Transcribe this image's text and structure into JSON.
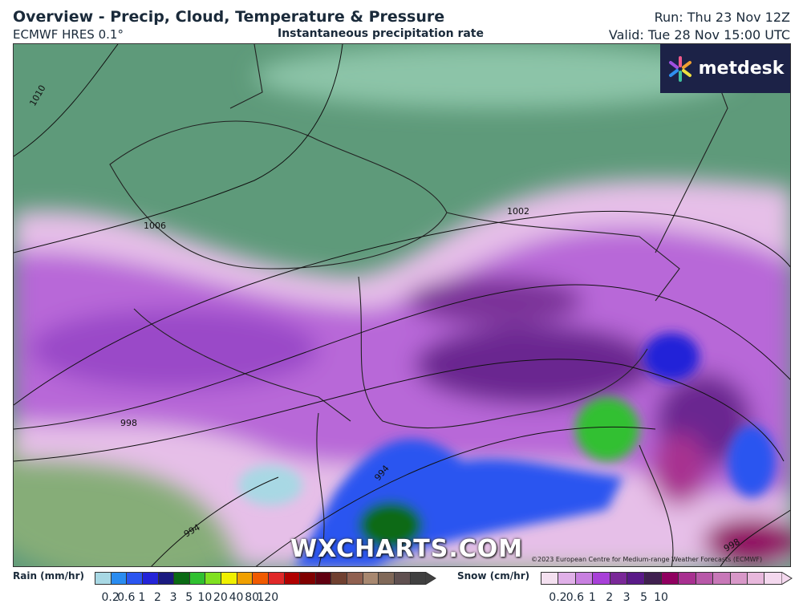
{
  "header": {
    "title": "Overview - Precip, Cloud, Temperature & Pressure",
    "model": "ECMWF HRES 0.1°",
    "subtitle": "Instantaneous precipitation rate",
    "run": "Run: Thu 23 Nov 12Z",
    "valid": "Valid: Tue 28 Nov 15:00 UTC"
  },
  "logo": {
    "text": "metdesk"
  },
  "watermark": "WXCHARTS.COM",
  "copyright": "©2023 European Centre for Medium-range Weather Forecasts (ECMWF)",
  "isobars": [
    "1010",
    "1006",
    "1002",
    "998",
    "994",
    "994",
    "998"
  ],
  "legend": {
    "rain": {
      "label": "Rain (mm/hr)",
      "ticks": [
        "0.2",
        "0.6",
        "1",
        "2",
        "3",
        "5",
        "10",
        "20",
        "40",
        "80",
        "120"
      ],
      "colors": [
        "#a8d8e4",
        "#2a8cf0",
        "#2a55f0",
        "#2424d8",
        "#1a1a80",
        "#0a6a14",
        "#30c030",
        "#80e020",
        "#f0f000",
        "#f0a000",
        "#f05a00",
        "#e02828",
        "#b00000",
        "#800000",
        "#600010",
        "#704030",
        "#906050",
        "#a88870",
        "#806858",
        "#605050",
        "#404040"
      ]
    },
    "snow": {
      "label": "Snow (cm/hr)",
      "ticks": [
        "0.2",
        "0.6",
        "1",
        "2",
        "3",
        "5",
        "10"
      ],
      "colors": [
        "#f4e0f0",
        "#e0b0e8",
        "#c880e0",
        "#a840d8",
        "#7a2898",
        "#5a1a88",
        "#402050",
        "#900060",
        "#a83090",
        "#b858a8",
        "#c878b8",
        "#d898c8",
        "#e8b8dc",
        "#f4d8ee"
      ]
    }
  }
}
